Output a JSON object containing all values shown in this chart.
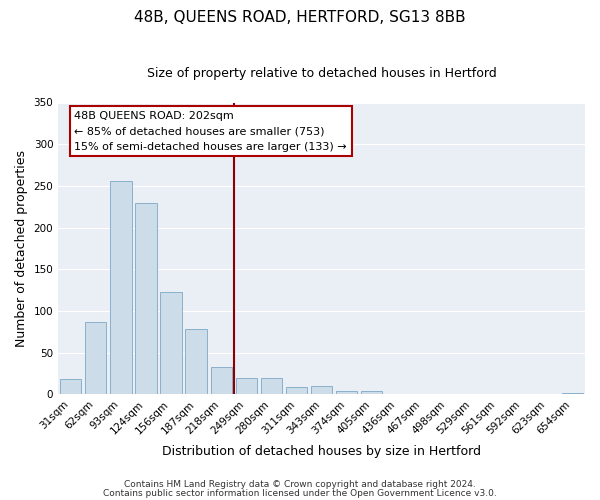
{
  "title": "48B, QUEENS ROAD, HERTFORD, SG13 8BB",
  "subtitle": "Size of property relative to detached houses in Hertford",
  "xlabel": "Distribution of detached houses by size in Hertford",
  "ylabel": "Number of detached properties",
  "bar_color": "#ccdce8",
  "bar_edge_color": "#8ab0cc",
  "categories": [
    "31sqm",
    "62sqm",
    "93sqm",
    "124sqm",
    "156sqm",
    "187sqm",
    "218sqm",
    "249sqm",
    "280sqm",
    "311sqm",
    "343sqm",
    "374sqm",
    "405sqm",
    "436sqm",
    "467sqm",
    "498sqm",
    "529sqm",
    "561sqm",
    "592sqm",
    "623sqm",
    "654sqm"
  ],
  "values": [
    19,
    87,
    256,
    230,
    123,
    78,
    33,
    20,
    20,
    9,
    10,
    4,
    4,
    1,
    0,
    0,
    0,
    0,
    0,
    0,
    2
  ],
  "ylim": [
    0,
    350
  ],
  "yticks": [
    0,
    50,
    100,
    150,
    200,
    250,
    300,
    350
  ],
  "vline_x": 6.5,
  "vline_color": "#8b0000",
  "annotation_title": "48B QUEENS ROAD: 202sqm",
  "annotation_line1": "← 85% of detached houses are smaller (753)",
  "annotation_line2": "15% of semi-detached houses are larger (133) →",
  "annotation_box_color": "#ffffff",
  "annotation_box_edge_color": "#aa0000",
  "footer_line1": "Contains HM Land Registry data © Crown copyright and database right 2024.",
  "footer_line2": "Contains public sector information licensed under the Open Government Licence v3.0.",
  "background_color": "#ffffff",
  "plot_bg_color": "#eaeff5",
  "grid_color": "#ffffff",
  "title_fontsize": 11,
  "subtitle_fontsize": 9,
  "axis_label_fontsize": 9,
  "tick_fontsize": 7.5,
  "annotation_fontsize": 8,
  "footer_fontsize": 6.5
}
